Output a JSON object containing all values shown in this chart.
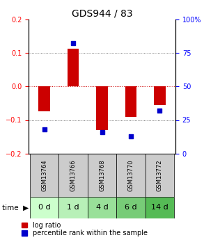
{
  "title": "GDS944 / 83",
  "samples": [
    "GSM13764",
    "GSM13766",
    "GSM13768",
    "GSM13770",
    "GSM13772"
  ],
  "time_labels": [
    "0 d",
    "1 d",
    "4 d",
    "6 d",
    "14 d"
  ],
  "log_ratios": [
    -0.075,
    0.112,
    -0.13,
    -0.09,
    -0.055
  ],
  "percentile_ranks": [
    18,
    82,
    16,
    13,
    32
  ],
  "ylim_left": [
    -0.2,
    0.2
  ],
  "ylim_right": [
    0,
    100
  ],
  "bar_color": "#cc0000",
  "dot_color": "#0000cc",
  "grid_color": "#555555",
  "zero_line_color": "#cc0000",
  "background_color": "#ffffff",
  "plot_bg": "#ffffff",
  "gsm_bg": "#cccccc",
  "time_bg_colors": [
    "#ccffcc",
    "#b8f0b8",
    "#99e099",
    "#77cc77",
    "#55bb55"
  ],
  "bar_width": 0.4,
  "dot_size": 22,
  "title_fontsize": 10,
  "tick_fontsize": 7,
  "label_fontsize": 7,
  "legend_fontsize": 7,
  "gsm_fontsize": 6,
  "time_fontsize": 8
}
